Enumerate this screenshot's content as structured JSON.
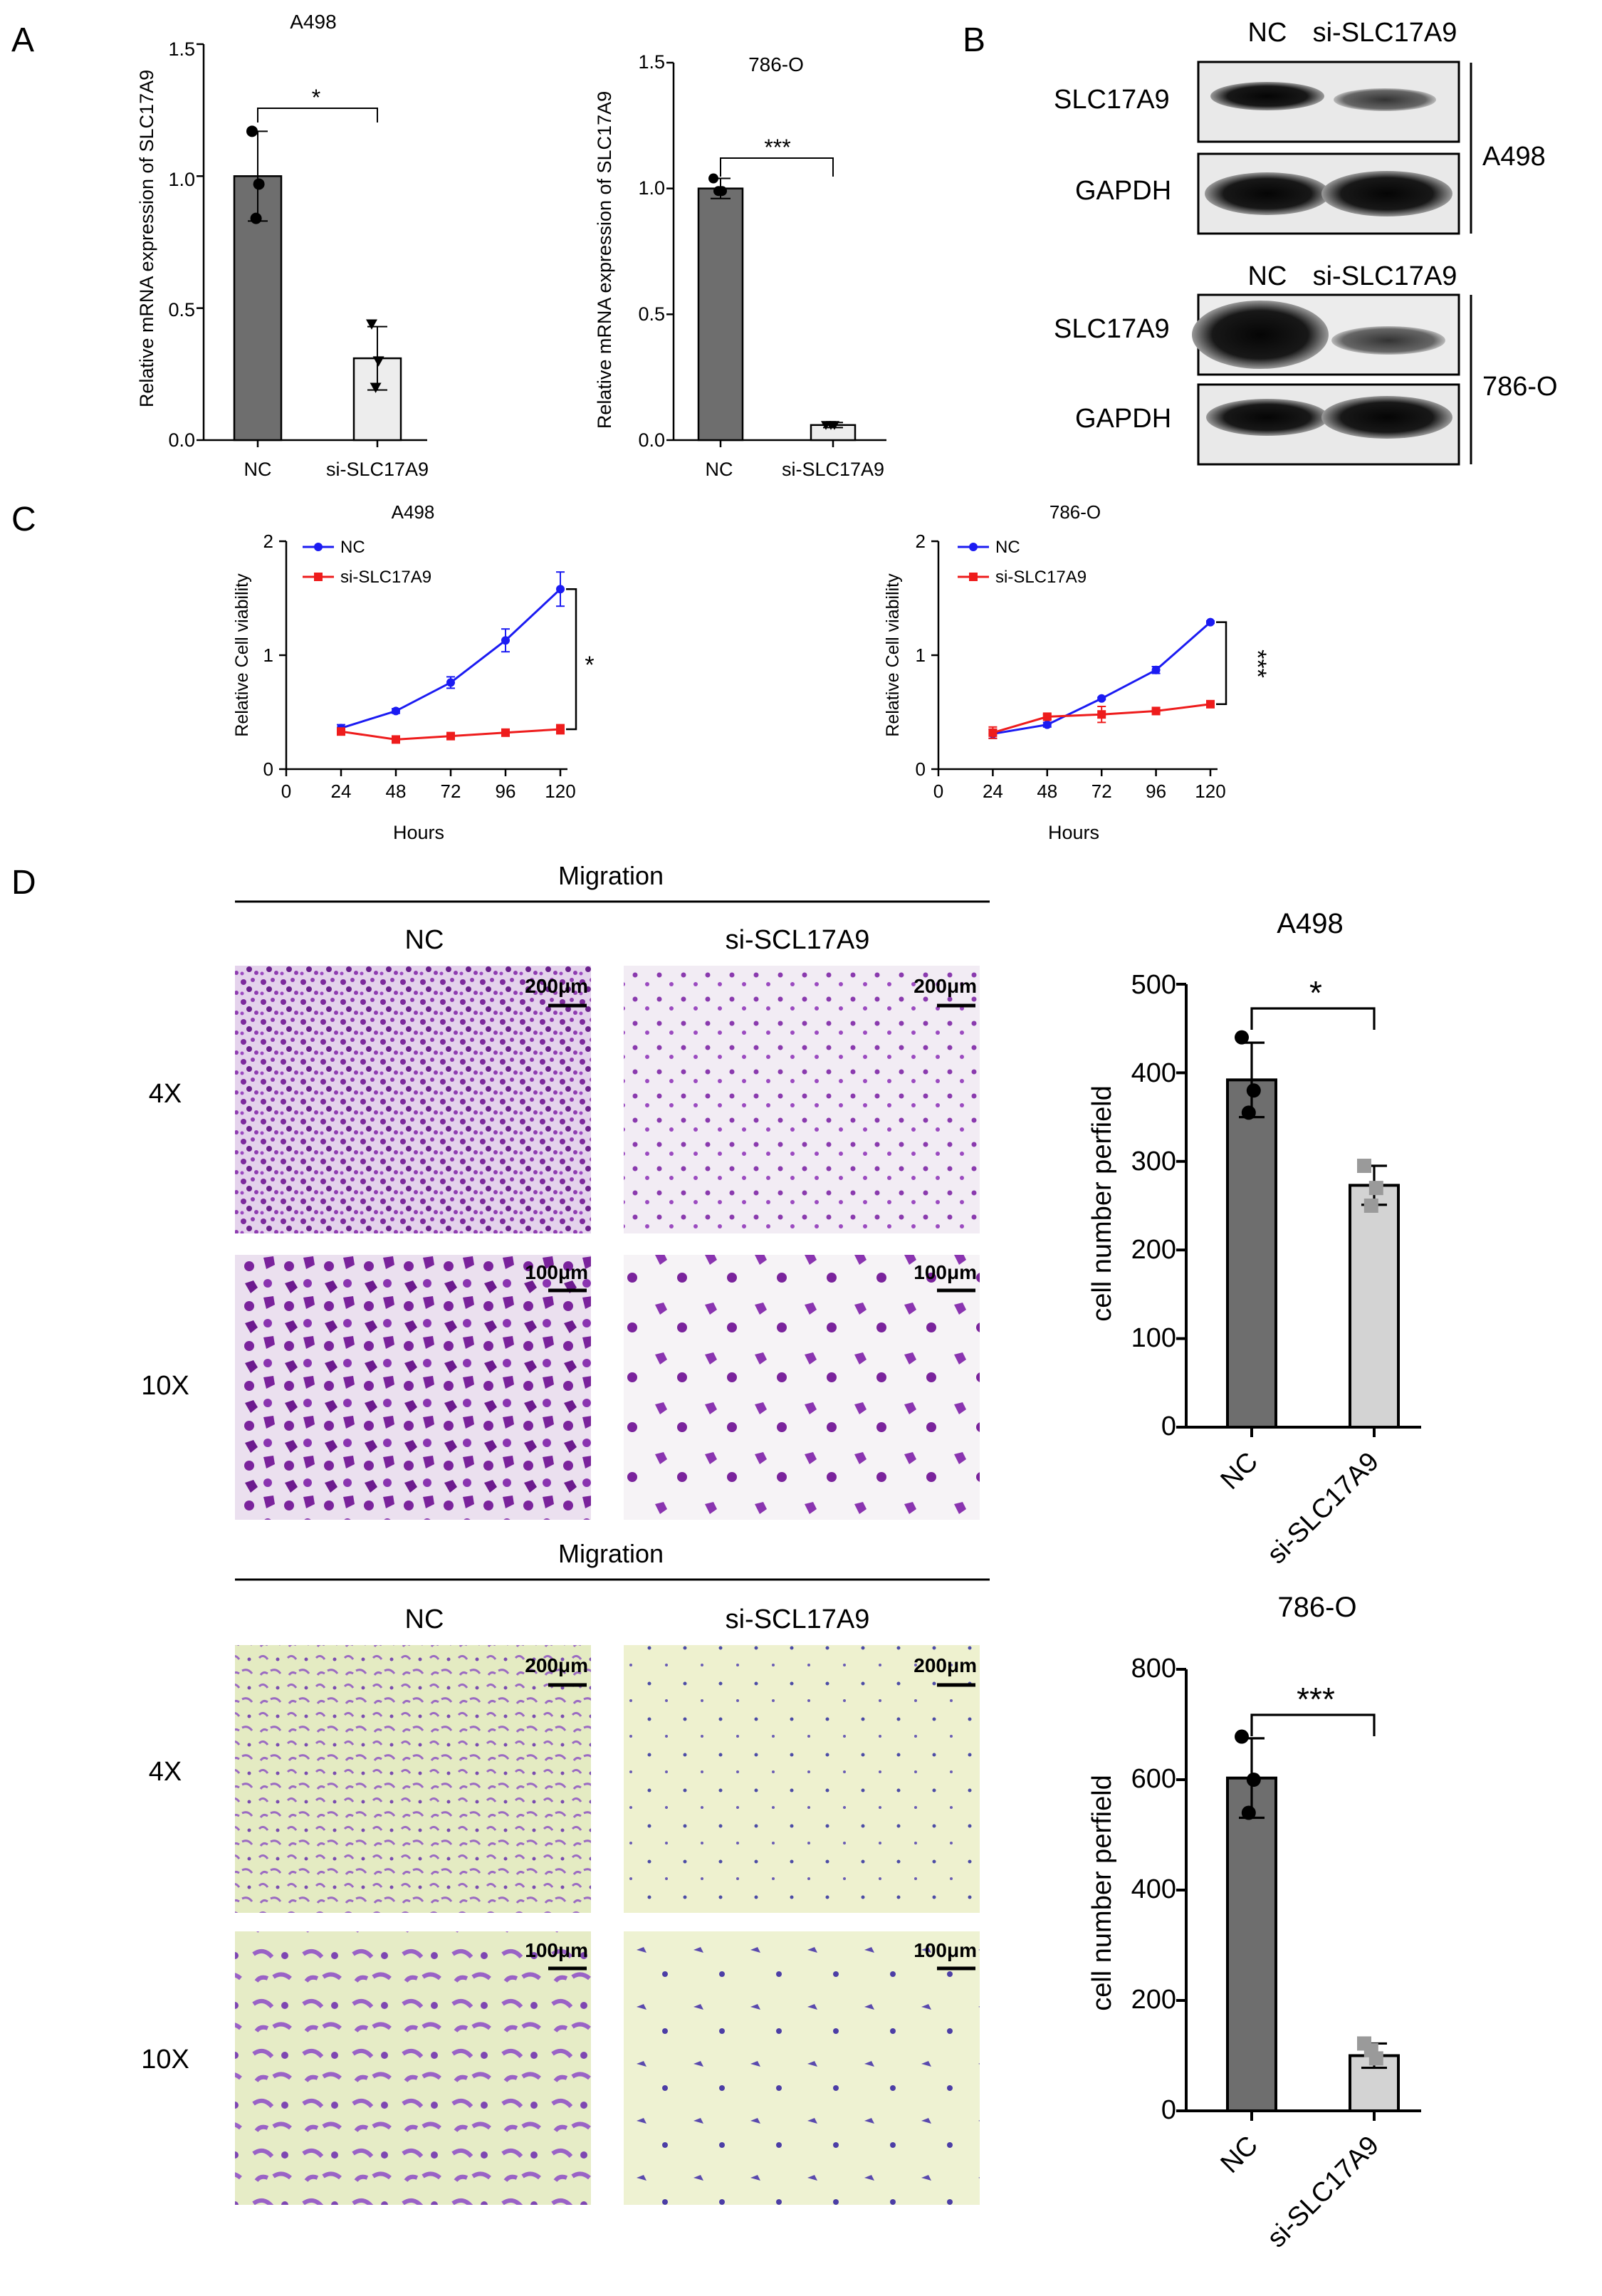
{
  "panels": {
    "A": {
      "label": "A",
      "charts": [
        {
          "title": "A498",
          "ylabel": "Relative mRNA expression of SLC17A9",
          "ticks": [
            "0.0",
            "0.5",
            "1.0",
            "1.5"
          ],
          "sig": "*",
          "cat1": "NC",
          "cat2": "si-SLC17A9"
        },
        {
          "title": "786-O",
          "ylabel": "Relative mRNA expression of SLC17A9",
          "ticks": [
            "0.0",
            "0.5",
            "1.0",
            "1.5"
          ],
          "sig": "***",
          "cat1": "NC",
          "cat2": "si-SLC17A9"
        }
      ]
    },
    "B": {
      "label": "B",
      "blots": [
        {
          "col1": "NC",
          "col2": "si-SLC17A9",
          "row1": "SLC17A9",
          "row2": "GAPDH",
          "cell": "A498"
        },
        {
          "col1": "NC",
          "col2": "si-SLC17A9",
          "row1": "SLC17A9",
          "row2": "GAPDH",
          "cell": "786-O"
        }
      ]
    },
    "C": {
      "label": "C",
      "charts": [
        {
          "title": "A498",
          "ylabel": "Relative Cell viability",
          "xlabel": "Hours",
          "yticks": [
            "0",
            "1",
            "2"
          ],
          "xticks": [
            "0",
            "24",
            "48",
            "72",
            "96",
            "120"
          ],
          "legend": [
            "NC",
            "si-SLC17A9"
          ],
          "sig": "*"
        },
        {
          "title": "786-O",
          "ylabel": "Relative Cell viability",
          "xlabel": "Hours",
          "yticks": [
            "0",
            "1",
            "2"
          ],
          "xticks": [
            "0",
            "24",
            "48",
            "72",
            "96",
            "120"
          ],
          "legend": [
            "NC",
            "si-SLC17A9"
          ],
          "sig": "***"
        }
      ]
    },
    "D": {
      "label": "D",
      "groups": [
        {
          "header": "Migration",
          "col1": "NC",
          "col2": "si-SCL17A9",
          "row1": "4X",
          "row2": "10X",
          "scale1": "200μm",
          "scale2": "100μm"
        },
        {
          "header": "Migration",
          "col1": "NC",
          "col2": "si-SCL17A9",
          "row1": "4X",
          "row2": "10X",
          "scale1": "200μm",
          "scale2": "100μm"
        }
      ],
      "charts": [
        {
          "title": "A498",
          "ylabel": "cell number perfield",
          "ticks": [
            "0",
            "100",
            "200",
            "300",
            "400",
            "500"
          ],
          "sig": "*",
          "cat1": "NC",
          "cat2": "si-SLC17A9"
        },
        {
          "title": "786-O",
          "ylabel": "cell number perfield",
          "ticks": [
            "0",
            "200",
            "400",
            "600",
            "800"
          ],
          "sig": "***",
          "cat1": "NC",
          "cat2": "si-SLC17A9"
        }
      ]
    }
  },
  "chart_data": [
    {
      "type": "bar",
      "panel": "A",
      "title": "A498",
      "ylabel": "Relative mRNA expression of SLC17A9",
      "categories": [
        "NC",
        "si-SLC17A9"
      ],
      "values": [
        1.0,
        0.31
      ],
      "errors": [
        0.17,
        0.12
      ],
      "points": [
        [
          1.17,
          0.97,
          0.84
        ],
        [
          0.44,
          0.3,
          0.2
        ]
      ],
      "ylim": [
        0,
        1.5
      ],
      "colors": [
        "#6e6e6e",
        "#ededed"
      ]
    },
    {
      "type": "bar",
      "panel": "A",
      "title": "786-O",
      "ylabel": "Relative mRNA expression of SLC17A9",
      "categories": [
        "NC",
        "si-SLC17A9"
      ],
      "values": [
        1.0,
        0.06
      ],
      "errors": [
        0.04,
        0.01
      ],
      "points": [
        [
          1.04,
          0.99,
          0.99
        ],
        [
          0.06,
          0.06,
          0.06
        ]
      ],
      "ylim": [
        0,
        1.5
      ],
      "colors": [
        "#6e6e6e",
        "#ededed"
      ]
    },
    {
      "type": "line",
      "panel": "C",
      "title": "A498",
      "xlabel": "Hours",
      "ylabel": "Relative Cell viability",
      "x": [
        24,
        48,
        72,
        96,
        120
      ],
      "xlim": [
        0,
        120
      ],
      "ylim": [
        0,
        2
      ],
      "series": [
        {
          "name": "NC",
          "values": [
            0.36,
            0.51,
            0.76,
            1.13,
            1.58
          ],
          "errors": [
            0.03,
            0.02,
            0.05,
            0.1,
            0.15
          ],
          "color": "#1b1bf2"
        },
        {
          "name": "si-SLC17A9",
          "values": [
            0.33,
            0.26,
            0.29,
            0.32,
            0.35
          ],
          "errors": [
            0.02,
            0.02,
            0.02,
            0.02,
            0.04
          ],
          "color": "#ee1c1c"
        }
      ]
    },
    {
      "type": "line",
      "panel": "C",
      "title": "786-O",
      "xlabel": "Hours",
      "ylabel": "Relative Cell viability",
      "x": [
        24,
        48,
        72,
        96,
        120
      ],
      "xlim": [
        0,
        120
      ],
      "ylim": [
        0,
        2
      ],
      "series": [
        {
          "name": "NC",
          "values": [
            0.31,
            0.39,
            0.62,
            0.87,
            1.29
          ],
          "errors": [
            0.04,
            0.02,
            0.01,
            0.03,
            0.01
          ],
          "color": "#1b1bf2"
        },
        {
          "name": "si-SLC17A9",
          "values": [
            0.32,
            0.46,
            0.48,
            0.51,
            0.57
          ],
          "errors": [
            0.05,
            0.02,
            0.07,
            0.01,
            0.01
          ],
          "color": "#ee1c1c"
        }
      ]
    },
    {
      "type": "bar",
      "panel": "D",
      "title": "A498",
      "ylabel": "cell number perfield",
      "categories": [
        "NC",
        "si-SLC17A9"
      ],
      "values": [
        392,
        273
      ],
      "errors": [
        42,
        22
      ],
      "points": [
        [
          440,
          380,
          355
        ],
        [
          295,
          270,
          250
        ]
      ],
      "ylim": [
        0,
        500
      ],
      "colors": [
        "#6e6e6e",
        "#d3d3d3"
      ]
    },
    {
      "type": "bar",
      "panel": "D",
      "title": "786-O",
      "ylabel": "cell number perfield",
      "categories": [
        "NC",
        "si-SLC17A9"
      ],
      "values": [
        603,
        100
      ],
      "errors": [
        72,
        22
      ],
      "points": [
        [
          678,
          600,
          540
        ],
        [
          122,
          95,
          110
        ]
      ],
      "ylim": [
        0,
        800
      ],
      "colors": [
        "#6e6e6e",
        "#d3d3d3"
      ]
    }
  ]
}
